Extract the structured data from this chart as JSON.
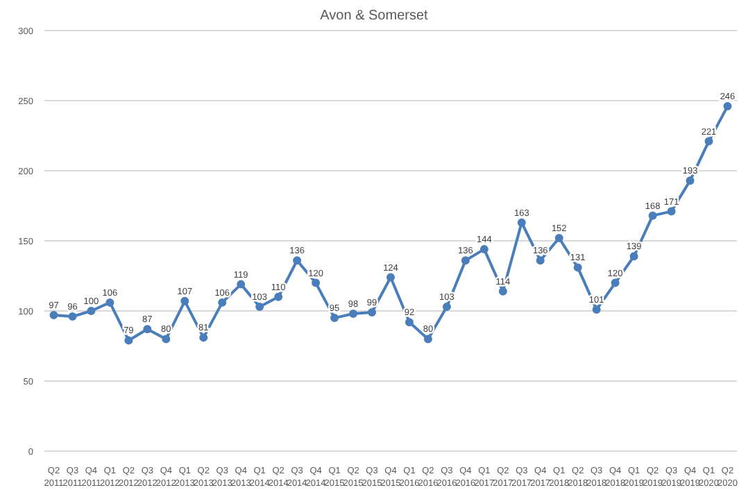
{
  "chart_data": {
    "type": "line",
    "title": "Avon & Somerset",
    "categories": [
      "Q2 2011",
      "Q3 2011",
      "Q4 2011",
      "Q1 2012",
      "Q2 2012",
      "Q3 2012",
      "Q4 2012",
      "Q1 2013",
      "Q2 2013",
      "Q3 2013",
      "Q4 2013",
      "Q1 2014",
      "Q2 2014",
      "Q3 2014",
      "Q4 2014",
      "Q1 2015",
      "Q2 2015",
      "Q3 2015",
      "Q4 2015",
      "Q1 2016",
      "Q2 2016",
      "Q3 2016",
      "Q4 2016",
      "Q1 2017",
      "Q2 2017",
      "Q3 2017",
      "Q4 2017",
      "Q1 2018",
      "Q2 2018",
      "Q3 2018",
      "Q4 2018",
      "Q1 2019",
      "Q2 2019",
      "Q3 2019",
      "Q4 2019",
      "Q1 2020",
      "Q2 2020"
    ],
    "series": [
      {
        "color": "#4a7ebb",
        "values": [
          97,
          96,
          100,
          106,
          79,
          87,
          80,
          107,
          81,
          106,
          119,
          103,
          110,
          136,
          120,
          95,
          98,
          99,
          124,
          92,
          80,
          103,
          136,
          144,
          114,
          163,
          136,
          152,
          131,
          101,
          120,
          139,
          168,
          171,
          193,
          221,
          246
        ]
      }
    ],
    "ylim": [
      0,
      300
    ],
    "yticks": [
      0,
      50,
      100,
      150,
      200,
      250,
      300
    ],
    "grid": "y",
    "marker": "circle",
    "line_style": "solid",
    "data_labels": true,
    "legend": false
  }
}
